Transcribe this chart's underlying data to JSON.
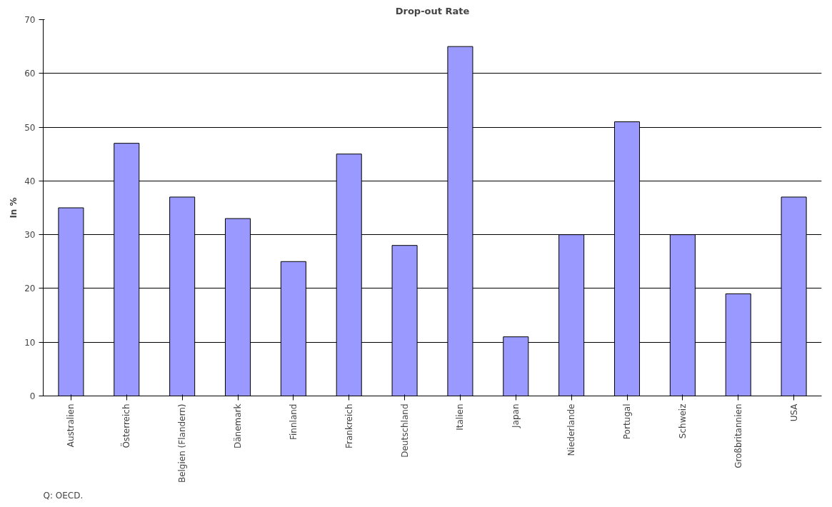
{
  "chart_data": {
    "type": "bar",
    "title": "Drop-out Rate",
    "ylabel": "In %",
    "categories": [
      "Australien",
      "Österreich",
      "Belgien (Flandern)",
      "Dänemark",
      "Finnland",
      "Frankreich",
      "Deutschland",
      "Italien",
      "Japan",
      "Niederlande",
      "Portugal",
      "Schweiz",
      "Großbritannien",
      "USA"
    ],
    "values": [
      35,
      47,
      37,
      33,
      25,
      45,
      28,
      65,
      11,
      30,
      51,
      30,
      19,
      37
    ],
    "color": "#9999ff",
    "ylim": [
      0,
      70
    ],
    "yticks": [
      0,
      10,
      20,
      30,
      40,
      50,
      60,
      70
    ],
    "grid": "y",
    "annotations": [
      "Q: OECD."
    ]
  }
}
